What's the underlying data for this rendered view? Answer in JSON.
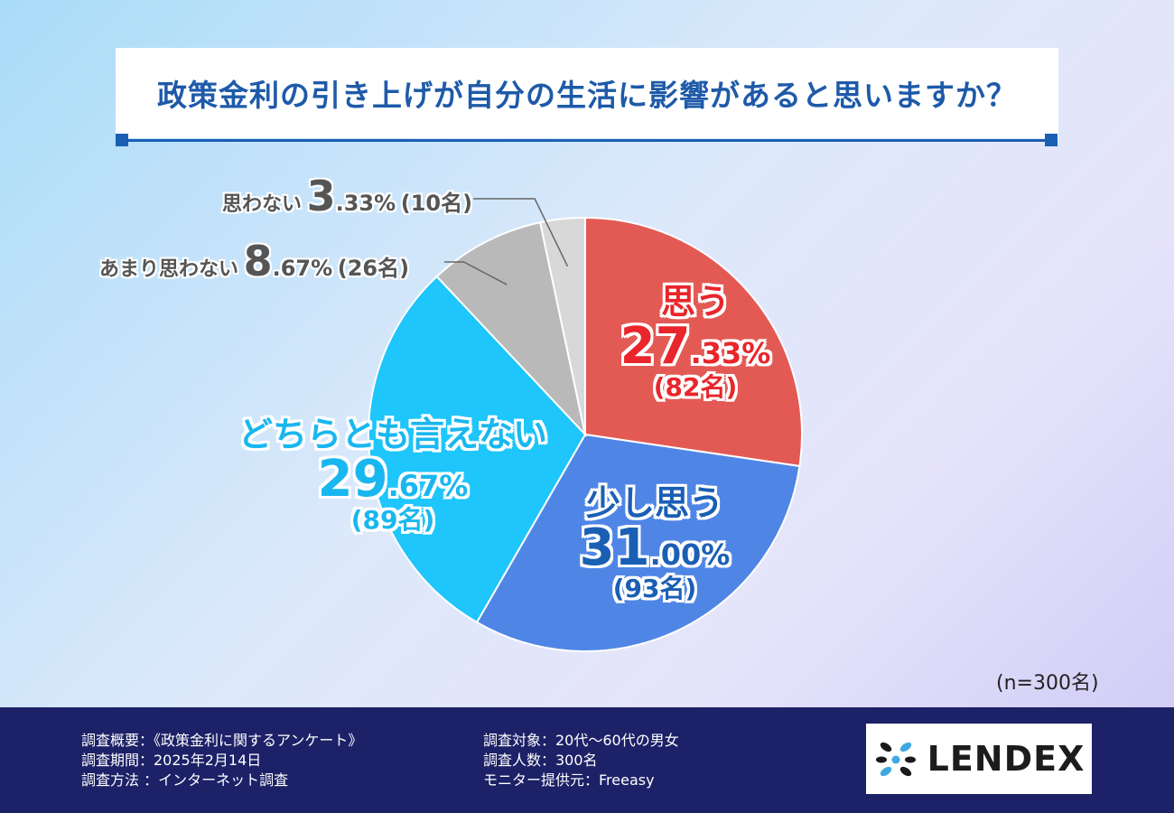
{
  "title": "政策金利の引き上げが自分の生活に影響があると思いますか？",
  "chart_data": {
    "type": "pie",
    "title": "政策金利の引き上げが自分の生活に影響があると思いますか？",
    "slices": [
      {
        "label": "思う",
        "value": 27.33,
        "int": "27",
        "dec": ".33%",
        "count": "(82名)",
        "color": "#e35a55"
      },
      {
        "label": "少し思う",
        "value": 31.0,
        "int": "31",
        "dec": ".00%",
        "count": "(93名)",
        "color": "#4f86e6"
      },
      {
        "label": "どちらとも言えない",
        "value": 29.67,
        "int": "29",
        "dec": ".67%",
        "count": "(89名)",
        "color": "#1ec6fb"
      },
      {
        "label": "あまり思わない",
        "value": 8.67,
        "int": "8",
        "dec": ".67%",
        "count": "(26名)",
        "color": "#b9b9b9"
      },
      {
        "label": "思わない",
        "value": 3.33,
        "int": "3",
        "dec": ".33%",
        "count": "(10名)",
        "color": "#d8d8d8"
      }
    ],
    "label_colors": [
      "#e8262b",
      "#1a5fb4",
      "#19b7ef",
      "#555555",
      "#555555"
    ],
    "n": "(n=300名)"
  },
  "footer": {
    "left": [
      "調査概要：《政策金利に関するアンケート》",
      "調査期間：2025年2月14日",
      "調査方法 ：インターネット調査"
    ],
    "right": [
      "調査対象：20代〜60代の男女",
      "調査人数：300名",
      "モニター提供元：Freeasy"
    ]
  },
  "logo": {
    "text": "LENDEX",
    "icon": "lendex-logo-icon",
    "colors": [
      "#1a1a1a",
      "#3fa9e0"
    ]
  }
}
